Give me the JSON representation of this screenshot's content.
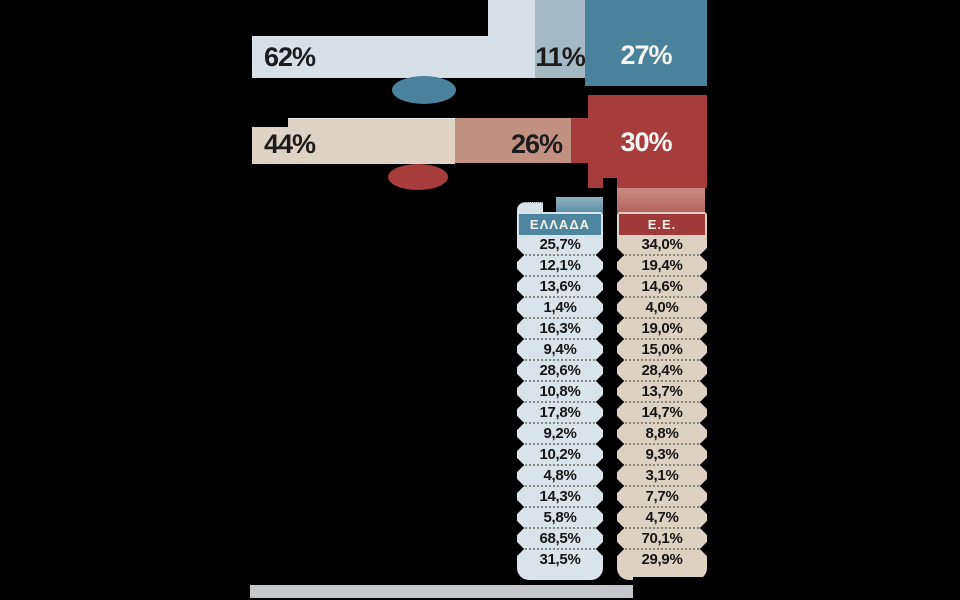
{
  "chart_data": {
    "type": "table",
    "title": "",
    "legend_position": "top-of-columns",
    "bars": [
      {
        "id": "bar-top",
        "segments": [
          {
            "value": "62%",
            "color": "#d6e0e6"
          },
          {
            "value": "11%",
            "color": "#a3bac5"
          },
          {
            "value": "27%",
            "color": "#4a829c"
          }
        ]
      },
      {
        "id": "bar-bottom",
        "segments": [
          {
            "value": "44%",
            "color": "#ded3c4"
          },
          {
            "value": "26%",
            "color": "#c29181"
          },
          {
            "value": "30%",
            "color": "#a63c3c"
          }
        ]
      }
    ],
    "table": {
      "columns": [
        {
          "label": "ΕΛΛΑΔΑ",
          "header_color": "#4e86a0",
          "body_color": "#d9e4ea"
        },
        {
          "label": "Ε.Ε.",
          "header_color": "#a03a3a",
          "body_color": "#ddd2c2"
        }
      ],
      "rows": [
        {
          "greece": "25,7%",
          "eu": "34,0%"
        },
        {
          "greece": "12,1%",
          "eu": "19,4%"
        },
        {
          "greece": "13,6%",
          "eu": "14,6%"
        },
        {
          "greece": "1,4%",
          "eu": "4,0%"
        },
        {
          "greece": "16,3%",
          "eu": "19,0%"
        },
        {
          "greece": "9,4%",
          "eu": "15,0%"
        },
        {
          "greece": "28,6%",
          "eu": "28,4%"
        },
        {
          "greece": "10,8%",
          "eu": "13,7%"
        },
        {
          "greece": "17,8%",
          "eu": "14,7%"
        },
        {
          "greece": "9,2%",
          "eu": "8,8%"
        },
        {
          "greece": "10,2%",
          "eu": "9,3%"
        },
        {
          "greece": "4,8%",
          "eu": "3,1%"
        },
        {
          "greece": "14,3%",
          "eu": "7,7%"
        },
        {
          "greece": "5,8%",
          "eu": "4,7%"
        },
        {
          "greece": "68,5%",
          "eu": "70,1%"
        },
        {
          "greece": "31,5%",
          "eu": "29,9%"
        }
      ]
    },
    "colors": {
      "background": "#000000",
      "teal_accent": "#4a829c",
      "red_accent": "#a63c3c",
      "red_ribbon": "#bd7570",
      "teal_ribbon": "#86a9ba",
      "footer_gray": "#c6c7ca"
    }
  }
}
